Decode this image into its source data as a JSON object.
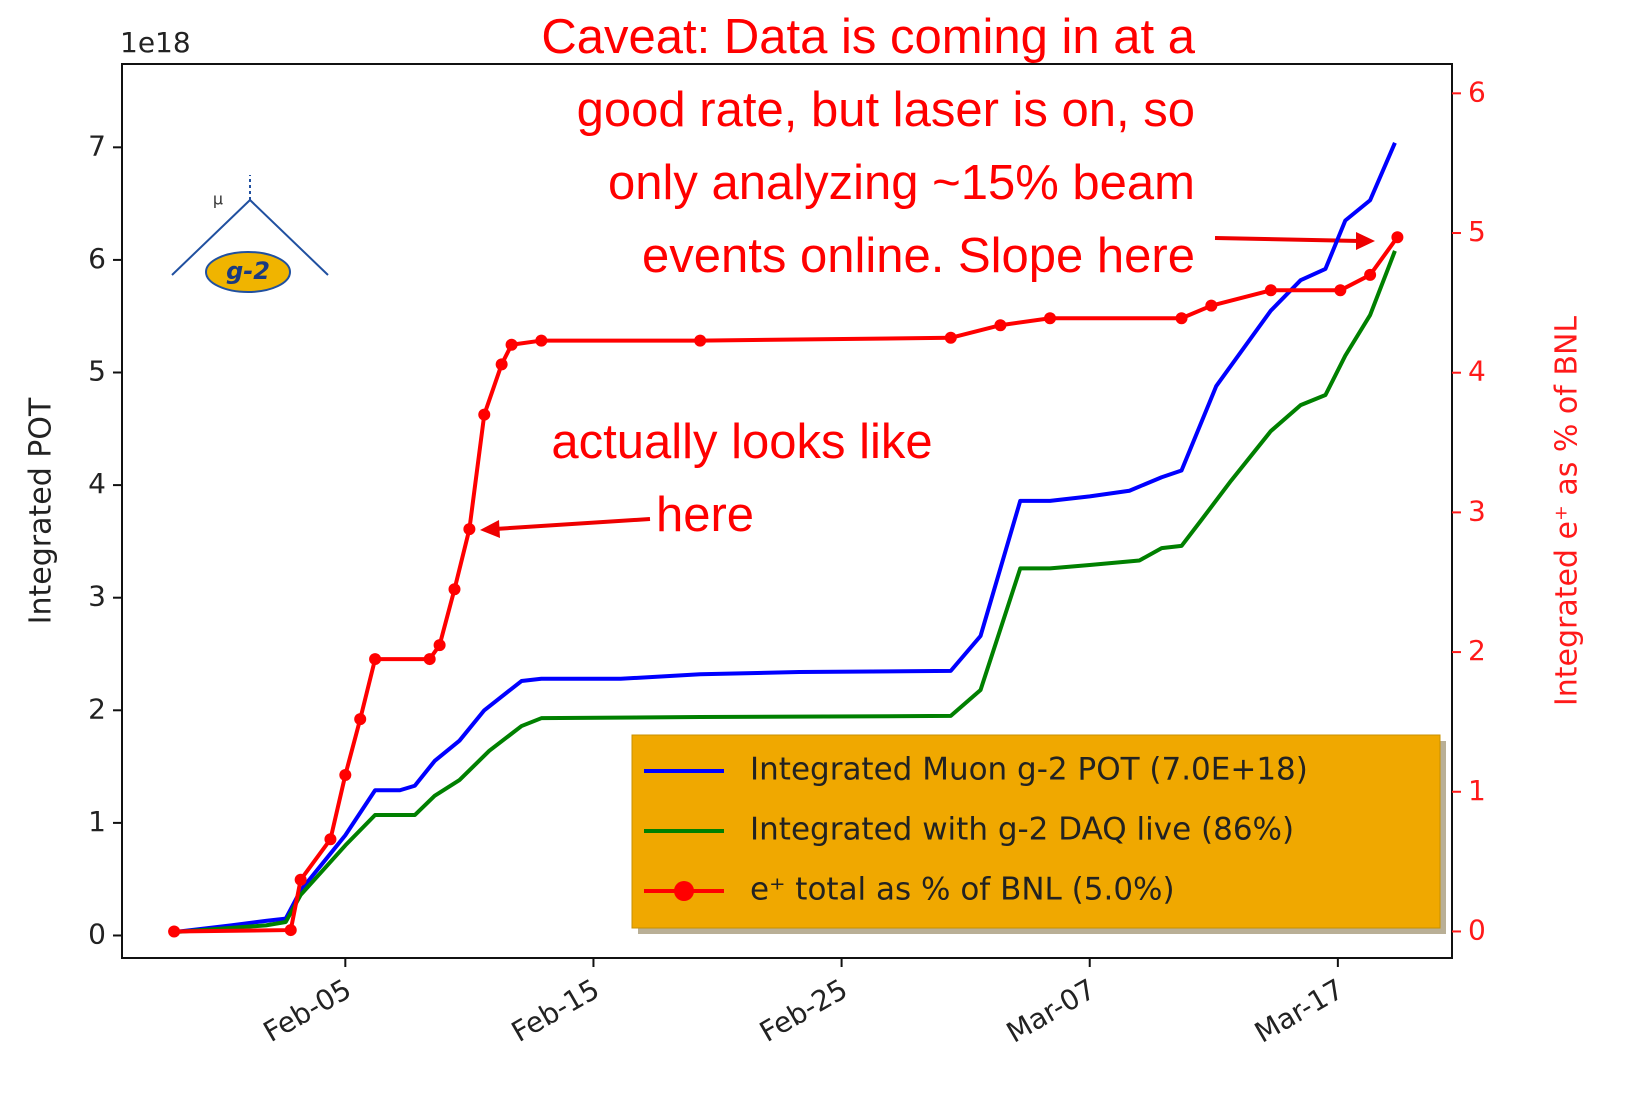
{
  "chart_data": {
    "type": "line",
    "ylabel": "Integrated POT",
    "y2label": "Integrated e⁺ as % of BNL",
    "offset_label": "1e18",
    "xlim": [
      -4,
      49.6
    ],
    "xticks": [
      {
        "value": 5,
        "label": "Feb-05"
      },
      {
        "value": 15,
        "label": "Feb-15"
      },
      {
        "value": 25,
        "label": "Feb-25"
      },
      {
        "value": 35,
        "label": "Mar-07"
      },
      {
        "value": 45,
        "label": "Mar-17"
      }
    ],
    "ylim": [
      -0.2,
      7.74
    ],
    "yticks": [
      0,
      1,
      2,
      3,
      4,
      5,
      6,
      7
    ],
    "y2lim": [
      -0.19,
      6.21
    ],
    "y2ticks": [
      0,
      1,
      2,
      3,
      4,
      5,
      6
    ],
    "legend": "lower right",
    "legend_color": "#f0a800",
    "series": [
      {
        "name": "Integrated Muon g-2 POT (7.0E+18)",
        "color": "#0000ff",
        "axis": "y",
        "x": [
          -1.9,
          0.4,
          1.8,
          2.6,
          3.2,
          5,
          6.2,
          7.2,
          7.8,
          8.6,
          9.6,
          10.6,
          12.1,
          12.9,
          16.1,
          19.3,
          23.3,
          29.4,
          30.6,
          32.2,
          33.4,
          35,
          36.6,
          37.9,
          38.7,
          40.1,
          42.3,
          43.5,
          44.5,
          45.3,
          46.3,
          47.3
        ],
        "values": [
          0.03,
          0.09,
          0.13,
          0.15,
          0.4,
          0.89,
          1.29,
          1.29,
          1.33,
          1.55,
          1.73,
          2.0,
          2.26,
          2.28,
          2.28,
          2.32,
          2.34,
          2.35,
          2.66,
          3.86,
          3.86,
          3.9,
          3.95,
          4.07,
          4.13,
          4.88,
          5.55,
          5.82,
          5.92,
          6.35,
          6.53,
          7.04
        ]
      },
      {
        "name": "Integrated with g-2 DAQ live (86%)",
        "color": "#008000",
        "axis": "y",
        "x": [
          -1.9,
          1.8,
          2.6,
          3.2,
          5,
          6.2,
          7.8,
          8.6,
          9.6,
          10.8,
          12.1,
          12.9,
          19.3,
          29.4,
          30.6,
          32.2,
          33.4,
          35,
          37,
          37.9,
          38.7,
          39.5,
          40.7,
          42.3,
          43.5,
          44.5,
          45.3,
          46.3,
          47.3
        ],
        "values": [
          0.03,
          0.09,
          0.12,
          0.36,
          0.8,
          1.07,
          1.07,
          1.24,
          1.38,
          1.64,
          1.86,
          1.93,
          1.94,
          1.95,
          2.18,
          3.26,
          3.26,
          3.29,
          3.33,
          3.44,
          3.46,
          3.69,
          4.04,
          4.48,
          4.71,
          4.8,
          5.15,
          5.51,
          6.08
        ]
      },
      {
        "name": "e⁺ total as % of BNL (5.0%)",
        "color": "#ff0000",
        "axis": "y2",
        "marker": "o",
        "x": [
          -1.9,
          2.8,
          3.2,
          4.4,
          5,
          5.6,
          6.2,
          8.4,
          8.8,
          9.4,
          10,
          10.6,
          11.3,
          11.7,
          12.9,
          19.3,
          29.4,
          31.4,
          33.4,
          38.7,
          39.9,
          42.3,
          45.1,
          46.3,
          47.4
        ],
        "values": [
          0,
          0.01,
          0.37,
          0.66,
          1.12,
          1.52,
          1.95,
          1.95,
          2.05,
          2.45,
          2.88,
          3.7,
          4.06,
          4.2,
          4.23,
          4.23,
          4.25,
          4.34,
          4.39,
          4.39,
          4.48,
          4.59,
          4.59,
          4.7,
          4.97
        ]
      }
    ],
    "annotations": [
      {
        "lines": [
          "Caveat: Data is coming in at a",
          "good rate, but laser is on, so",
          "only analyzing ~15% beam",
          "events online. Slope here"
        ]
      },
      {
        "lines": [
          "actually looks like",
          "here"
        ]
      }
    ],
    "logo": {
      "text": "g-2",
      "symbol": "μ"
    }
  }
}
